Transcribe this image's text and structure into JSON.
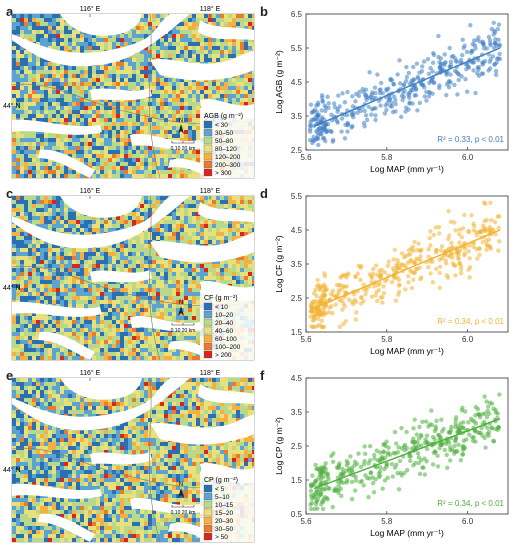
{
  "panels": [
    {
      "map_letter": "a",
      "plot_letter": "b",
      "map": {
        "lon_labels": [
          "116° E",
          "118° E"
        ],
        "lat_label": "44° N",
        "north": "N",
        "scalebar": "0 10 20 km",
        "legend_title": "AGB (g m⁻²)",
        "legend": [
          {
            "label": "< 30",
            "color": "#2b6fb3"
          },
          {
            "label": "30–50",
            "color": "#5ba3d0"
          },
          {
            "label": "50–80",
            "color": "#b8d98a"
          },
          {
            "label": "80–120",
            "color": "#e8e07a"
          },
          {
            "label": "120–200",
            "color": "#f5b041"
          },
          {
            "label": "200–300",
            "color": "#ec7a2b"
          },
          {
            "label": "> 300",
            "color": "#d7261e"
          }
        ]
      },
      "chart_data": {
        "type": "scatter",
        "xlabel": "Log MAP (mm yr⁻¹)",
        "ylabel": "Log AGB (g m⁻²)",
        "xlim": [
          5.6,
          6.1
        ],
        "ylim": [
          2.5,
          6.5
        ],
        "xticks": [
          "5.6",
          "5.8",
          "6.0"
        ],
        "yticks": [
          "2.5",
          "3.5",
          "4.5",
          "5.5",
          "6.5"
        ],
        "fit_line": {
          "x": [
            5.62,
            6.08
          ],
          "y": [
            3.2,
            5.5
          ]
        },
        "annotation": "R² = 0.33, p < 0.01",
        "color": "#3f7fc4",
        "seed": 11,
        "n_points": 420,
        "noise": 0.38
      }
    },
    {
      "map_letter": "c",
      "plot_letter": "d",
      "map": {
        "lon_labels": [
          "116° E",
          "118° E"
        ],
        "lat_label": "44° N",
        "north": "N",
        "scalebar": "0 10 20 km",
        "legend_title": "CF (g m⁻²)",
        "legend": [
          {
            "label": "< 10",
            "color": "#2b6fb3"
          },
          {
            "label": "10–20",
            "color": "#5ba3d0"
          },
          {
            "label": "20–40",
            "color": "#b8d98a"
          },
          {
            "label": "40–60",
            "color": "#e8e07a"
          },
          {
            "label": "60–100",
            "color": "#f5b041"
          },
          {
            "label": "100–200",
            "color": "#ec7a2b"
          },
          {
            "label": "> 200",
            "color": "#d7261e"
          }
        ]
      },
      "chart_data": {
        "type": "scatter",
        "xlabel": "Log MAP (mm yr⁻¹)",
        "ylabel": "Log CF (g m⁻²)",
        "xlim": [
          5.6,
          6.1
        ],
        "ylim": [
          1.5,
          5.5
        ],
        "xticks": [
          "5.6",
          "5.8",
          "6.0"
        ],
        "yticks": [
          "1.5",
          "2.5",
          "3.5",
          "4.5",
          "5.5"
        ],
        "fit_line": {
          "x": [
            5.62,
            6.08
          ],
          "y": [
            2.2,
            4.5
          ]
        },
        "annotation": "R² = 0.34, p < 0.01",
        "color": "#f2b233",
        "seed": 23,
        "n_points": 420,
        "noise": 0.38
      }
    },
    {
      "map_letter": "e",
      "plot_letter": "f",
      "map": {
        "lon_labels": [
          "116° E",
          "118° E"
        ],
        "lat_label": "44° N",
        "north": "N",
        "scalebar": "0 10 20 km",
        "legend_title": "CP (g m⁻²)",
        "legend": [
          {
            "label": "< 5",
            "color": "#2b6fb3"
          },
          {
            "label": "5–10",
            "color": "#5ba3d0"
          },
          {
            "label": "10–15",
            "color": "#b8d98a"
          },
          {
            "label": "15–20",
            "color": "#e8e07a"
          },
          {
            "label": "20–30",
            "color": "#f5b041"
          },
          {
            "label": "30–50",
            "color": "#ec7a2b"
          },
          {
            "label": "> 50",
            "color": "#d7261e"
          }
        ]
      },
      "chart_data": {
        "type": "scatter",
        "xlabel": "Log MAP (mm yr⁻¹)",
        "ylabel": "Log CP (g m⁻²)",
        "xlim": [
          5.6,
          6.1
        ],
        "ylim": [
          0.5,
          4.5
        ],
        "xticks": [
          "5.6",
          "5.8",
          "6.0"
        ],
        "yticks": [
          "0.5",
          "1.5",
          "2.5",
          "3.5",
          "4.5"
        ],
        "fit_line": {
          "x": [
            5.62,
            6.08
          ],
          "y": [
            1.25,
            3.3
          ]
        },
        "annotation": "R² = 0.34, p < 0.01",
        "color": "#4caf3c",
        "seed": 37,
        "n_points": 420,
        "noise": 0.36
      }
    }
  ]
}
